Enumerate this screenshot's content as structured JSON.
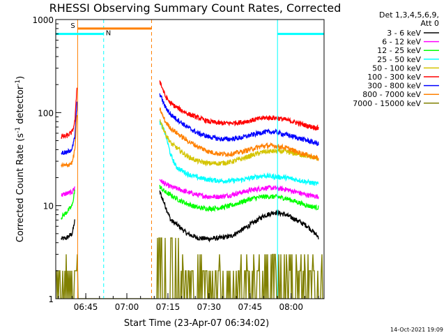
{
  "chart_data": {
    "type": "line",
    "title": "RHESSI Observing Summary Count Rates, Corrected",
    "xlabel": "Start Time (23-Apr-07 06:34:02)",
    "ylabel_parts": [
      "Corrected Count Rate (s",
      "-1",
      " detector",
      "-1",
      ")"
    ],
    "y_scale": "log",
    "ylim": [
      1,
      1000
    ],
    "xlim_minutes": [
      0,
      98
    ],
    "y_ticks": [
      {
        "value": 1,
        "label": "1"
      },
      {
        "value": 10,
        "label": "10"
      },
      {
        "value": 100,
        "label": "100"
      },
      {
        "value": 1000,
        "label": "1000"
      }
    ],
    "x_ticks": [
      {
        "minute": 10.97,
        "label": "06:45"
      },
      {
        "minute": 25.97,
        "label": "07:00"
      },
      {
        "minute": 40.97,
        "label": "07:15"
      },
      {
        "minute": 55.97,
        "label": "07:30"
      },
      {
        "minute": 70.97,
        "label": "07:45"
      },
      {
        "minute": 85.97,
        "label": "08:00"
      }
    ],
    "legend": {
      "position": "top-right",
      "header": [
        "Det 1,3,4,5,6,9,",
        "Att 0"
      ],
      "entries": [
        {
          "label": "3 - 6 keV",
          "color": "#000000"
        },
        {
          "label": "6 - 12 keV",
          "color": "#ff00ff"
        },
        {
          "label": "12 - 25 keV",
          "color": "#00ff00"
        },
        {
          "label": "25 - 50 keV",
          "color": "#00ffff"
        },
        {
          "label": "50 - 100 keV",
          "color": "#d4c400"
        },
        {
          "label": "100 - 300 keV",
          "color": "#ff0000"
        },
        {
          "label": "300 - 800 keV",
          "color": "#0000ff"
        },
        {
          "label": "800 - 7000 keV",
          "color": "#ff8000"
        },
        {
          "label": "7000 - 15000 keV",
          "color": "#808000"
        }
      ]
    },
    "series": [
      {
        "name": "3 - 6 keV",
        "color": "#000000",
        "segments": [
          [
            [
              2,
              4.4
            ],
            [
              4,
              4.5
            ],
            [
              6,
              5
            ],
            [
              7,
              7
            ]
          ],
          [
            [
              38,
              14
            ],
            [
              40,
              10
            ],
            [
              42,
              7
            ],
            [
              45,
              6
            ],
            [
              48,
              5
            ],
            [
              52,
              4.5
            ],
            [
              56,
              4.4
            ],
            [
              60,
              4.5
            ],
            [
              64,
              4.7
            ],
            [
              68,
              5.5
            ],
            [
              72,
              6.5
            ],
            [
              76,
              7.8
            ],
            [
              80,
              8.5
            ],
            [
              84,
              8
            ],
            [
              88,
              7
            ],
            [
              92,
              6
            ],
            [
              96,
              4.6
            ]
          ]
        ]
      },
      {
        "name": "6 - 12 keV",
        "color": "#ff00ff",
        "segments": [
          [
            [
              2,
              13
            ],
            [
              4,
              13.5
            ],
            [
              6,
              14
            ],
            [
              7,
              16
            ]
          ],
          [
            [
              38,
              19
            ],
            [
              40,
              17
            ],
            [
              42,
              16
            ],
            [
              45,
              15
            ],
            [
              48,
              14
            ],
            [
              52,
              13
            ],
            [
              56,
              12.5
            ],
            [
              60,
              12.5
            ],
            [
              64,
              13
            ],
            [
              68,
              14
            ],
            [
              72,
              14.8
            ],
            [
              76,
              15.5
            ],
            [
              80,
              15.5
            ],
            [
              84,
              15
            ],
            [
              88,
              14
            ],
            [
              92,
              13
            ],
            [
              96,
              12.5
            ]
          ]
        ]
      },
      {
        "name": "12 - 25 keV",
        "color": "#00ff00",
        "segments": [
          [
            [
              2,
              7.5
            ],
            [
              4,
              8.5
            ],
            [
              6,
              10
            ],
            [
              7,
              15
            ]
          ],
          [
            [
              38,
              16
            ],
            [
              40,
              14
            ],
            [
              42,
              13
            ],
            [
              45,
              11.5
            ],
            [
              48,
              10.5
            ],
            [
              52,
              9.5
            ],
            [
              56,
              9.3
            ],
            [
              60,
              9.5
            ],
            [
              64,
              10
            ],
            [
              68,
              11
            ],
            [
              72,
              12
            ],
            [
              76,
              12.5
            ],
            [
              80,
              12.5
            ],
            [
              84,
              12
            ],
            [
              88,
              11
            ],
            [
              92,
              10
            ],
            [
              96,
              9.5
            ]
          ]
        ]
      },
      {
        "name": "25 - 50 keV",
        "color": "#00ffff",
        "segments": [
          [
            [
              38,
              80
            ],
            [
              40,
              60
            ],
            [
              42,
              35
            ],
            [
              44,
              26
            ],
            [
              48,
              22
            ],
            [
              52,
              20
            ],
            [
              56,
              19
            ],
            [
              60,
              18.5
            ],
            [
              64,
              18.5
            ],
            [
              68,
              19
            ],
            [
              72,
              20
            ],
            [
              76,
              21
            ],
            [
              80,
              20.5
            ],
            [
              84,
              20
            ],
            [
              88,
              19
            ],
            [
              92,
              18
            ],
            [
              96,
              17
            ]
          ]
        ]
      },
      {
        "name": "50 - 100 keV",
        "color": "#d4c400",
        "segments": [
          [
            [
              38,
              85
            ],
            [
              40,
              60
            ],
            [
              42,
              47
            ],
            [
              45,
              40
            ],
            [
              48,
              34
            ],
            [
              52,
              30
            ],
            [
              56,
              28.5
            ],
            [
              60,
              28.5
            ],
            [
              64,
              29.5
            ],
            [
              68,
              32
            ],
            [
              72,
              35
            ],
            [
              76,
              38
            ],
            [
              80,
              38.5
            ],
            [
              84,
              38
            ],
            [
              88,
              36
            ],
            [
              92,
              34
            ],
            [
              96,
              32
            ]
          ]
        ]
      },
      {
        "name": "100 - 300 keV",
        "color": "#ff0000",
        "segments": [
          [
            [
              2,
              55
            ],
            [
              4,
              56
            ],
            [
              6,
              62
            ],
            [
              7,
              80
            ],
            [
              7.8,
              200
            ]
          ],
          [
            [
              38,
              220
            ],
            [
              40,
              150
            ],
            [
              42,
              125
            ],
            [
              45,
              110
            ],
            [
              48,
              98
            ],
            [
              52,
              88
            ],
            [
              56,
              80
            ],
            [
              60,
              77
            ],
            [
              64,
              77
            ],
            [
              68,
              79
            ],
            [
              72,
              83
            ],
            [
              76,
              88
            ],
            [
              80,
              88
            ],
            [
              84,
              84
            ],
            [
              88,
              78
            ],
            [
              92,
              72
            ],
            [
              96,
              68
            ]
          ]
        ]
      },
      {
        "name": "300 - 800 keV",
        "color": "#0000ff",
        "segments": [
          [
            [
              2,
              37
            ],
            [
              4,
              37
            ],
            [
              6,
              41
            ],
            [
              7,
              55
            ],
            [
              7.8,
              130
            ]
          ],
          [
            [
              38,
              160
            ],
            [
              40,
              115
            ],
            [
              42,
              95
            ],
            [
              45,
              82
            ],
            [
              48,
              70
            ],
            [
              52,
              60
            ],
            [
              56,
              55
            ],
            [
              60,
              52
            ],
            [
              64,
              52
            ],
            [
              68,
              54
            ],
            [
              72,
              58
            ],
            [
              76,
              62
            ],
            [
              80,
              62
            ],
            [
              84,
              58
            ],
            [
              88,
              54
            ],
            [
              92,
              50
            ],
            [
              96,
              46
            ]
          ]
        ]
      },
      {
        "name": "800 - 7000 keV",
        "color": "#ff8000",
        "segments": [
          [
            [
              2,
              27
            ],
            [
              4,
              27
            ],
            [
              6,
              29
            ],
            [
              7,
              40
            ],
            [
              7.8,
              100
            ]
          ],
          [
            [
              38,
              110
            ],
            [
              40,
              80
            ],
            [
              42,
              68
            ],
            [
              45,
              58
            ],
            [
              48,
              50
            ],
            [
              52,
              43
            ],
            [
              56,
              38
            ],
            [
              60,
              36
            ],
            [
              64,
              36
            ],
            [
              68,
              38
            ],
            [
              72,
              41
            ],
            [
              76,
              44
            ],
            [
              80,
              44
            ],
            [
              84,
              42
            ],
            [
              88,
              38
            ],
            [
              92,
              35
            ],
            [
              96,
              32
            ]
          ]
        ]
      },
      {
        "name": "7000 - 15000 keV",
        "color": "#808000",
        "segments": [
          [
            [
              0,
              1
            ],
            [
              98,
              1
            ]
          ]
        ]
      }
    ],
    "annotations": {
      "bars": [
        {
          "label": "S",
          "color": "#ff8000",
          "value": 800,
          "start_minute": 8,
          "end_minute": 35
        },
        {
          "label": "N",
          "color": "#00ffff",
          "value": 700,
          "start_minute": 0,
          "end_minute": 17.5
        },
        {
          "label": "",
          "color": "#00ffff",
          "value": 700,
          "start_minute": 81,
          "end_minute": 98
        }
      ],
      "vlines": [
        {
          "minute": 0,
          "color": "#00ffff",
          "dashed": false
        },
        {
          "minute": 8,
          "color": "#ff8000",
          "dashed": false
        },
        {
          "minute": 17.5,
          "color": "#00ffff",
          "dashed": true
        },
        {
          "minute": 35,
          "color": "#ff8000",
          "dashed": true
        },
        {
          "minute": 81,
          "color": "#00ffff",
          "dashed": false
        },
        {
          "minute": 98,
          "color": "#00ffff",
          "dashed": true
        }
      ]
    },
    "timestamp": "14-Oct-2021 19:09"
  }
}
